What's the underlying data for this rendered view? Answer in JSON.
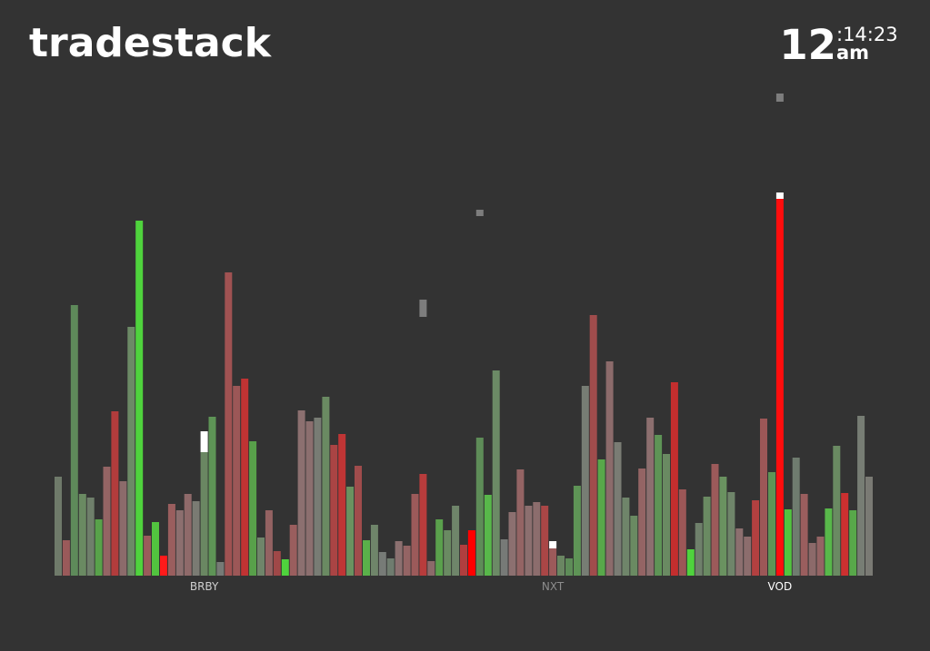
{
  "app": {
    "title": "tradestack"
  },
  "clock": {
    "hour": "12",
    "minsec": ":14:23",
    "ampm": "am"
  },
  "chart_data": {
    "type": "bar",
    "y_baseline": 0,
    "labels": [
      {
        "text": "BRBY",
        "index": 18,
        "color": "#cfcfcf"
      },
      {
        "text": "NXT",
        "index": 61,
        "color": "#8c8c8c"
      },
      {
        "text": "VOD",
        "index": 89,
        "color": "#ffffff"
      }
    ],
    "bars": [
      {
        "v": 109,
        "c": "#6f7a6a"
      },
      {
        "v": 39,
        "c": "#9a5a5a"
      },
      {
        "v": 298,
        "c": "#5e8a5a"
      },
      {
        "v": 90,
        "c": "#6a8a62"
      },
      {
        "v": 86,
        "c": "#6f7f6b"
      },
      {
        "v": 62,
        "c": "#58a24a"
      },
      {
        "v": 120,
        "c": "#946464"
      },
      {
        "v": 181,
        "c": "#b23c3c"
      },
      {
        "v": 104,
        "c": "#8c6b6b"
      },
      {
        "v": 274,
        "c": "#6c8a66"
      },
      {
        "v": 391,
        "c": "#4fd33d"
      },
      {
        "v": 44,
        "c": "#9a5b5b"
      },
      {
        "v": 59,
        "c": "#52c43f"
      },
      {
        "v": 22,
        "c": "#ff1a1a"
      },
      {
        "v": 79,
        "c": "#9a5e5e"
      },
      {
        "v": 72,
        "c": "#8c6f6f"
      },
      {
        "v": 90,
        "c": "#8f6a6a"
      },
      {
        "v": 82,
        "c": "#7a7b73"
      },
      {
        "v": 136,
        "c": "#6a8762",
        "hl": 23
      },
      {
        "v": 175,
        "c": "#5e9456"
      },
      {
        "v": 15,
        "c": "#767a76"
      },
      {
        "v": 334,
        "c": "#a05252"
      },
      {
        "v": 209,
        "c": "#9c5757"
      },
      {
        "v": 217,
        "c": "#c03333"
      },
      {
        "v": 148,
        "c": "#58a04a"
      },
      {
        "v": 42,
        "c": "#6f856a"
      },
      {
        "v": 72,
        "c": "#946262"
      },
      {
        "v": 27,
        "c": "#a04848"
      },
      {
        "v": 18,
        "c": "#4fd33d"
      },
      {
        "v": 56,
        "c": "#9a5e5e"
      },
      {
        "v": 182,
        "c": "#8c7070"
      },
      {
        "v": 170,
        "c": "#8c6f6f"
      },
      {
        "v": 174,
        "c": "#787c74"
      },
      {
        "v": 197,
        "c": "#6a8a62"
      },
      {
        "v": 144,
        "c": "#aa4444"
      },
      {
        "v": 156,
        "c": "#c03535"
      },
      {
        "v": 98,
        "c": "#6a9260"
      },
      {
        "v": 121,
        "c": "#a04c4c"
      },
      {
        "v": 39,
        "c": "#5ab04a"
      },
      {
        "v": 56,
        "c": "#6f856a"
      },
      {
        "v": 26,
        "c": "#777b77"
      },
      {
        "v": 19,
        "c": "#6f7c6f"
      },
      {
        "v": 38,
        "c": "#8c7070"
      },
      {
        "v": 33,
        "c": "#946464"
      },
      {
        "v": 90,
        "c": "#9c5a5a"
      },
      {
        "v": 112,
        "c": "#b83c3c"
      },
      {
        "v": 16,
        "c": "#8c6a6a"
      },
      {
        "v": 62,
        "c": "#5aa04c"
      },
      {
        "v": 50,
        "c": "#6a8a62"
      },
      {
        "v": 77,
        "c": "#6f856a"
      },
      {
        "v": 34,
        "c": "#b03e3e"
      },
      {
        "v": 50,
        "c": "#ff0000"
      },
      {
        "v": 152,
        "c": "#5e8c58"
      },
      {
        "v": 89,
        "c": "#58b84a"
      },
      {
        "v": 226,
        "c": "#6c8a66"
      },
      {
        "v": 40,
        "c": "#777a77"
      },
      {
        "v": 70,
        "c": "#8c7070"
      },
      {
        "v": 117,
        "c": "#946464"
      },
      {
        "v": 77,
        "c": "#8c6f6f"
      },
      {
        "v": 81,
        "c": "#8c6d6d"
      },
      {
        "v": 77,
        "c": "#aa4646"
      },
      {
        "v": 30,
        "c": "#9c5a5a",
        "hl": 8
      },
      {
        "v": 22,
        "c": "#6a8662"
      },
      {
        "v": 19,
        "c": "#5e8c58"
      },
      {
        "v": 99,
        "c": "#5e9456"
      },
      {
        "v": 209,
        "c": "#777d74"
      },
      {
        "v": 287,
        "c": "#a04c4c"
      },
      {
        "v": 128,
        "c": "#58a84a"
      },
      {
        "v": 236,
        "c": "#8c6b6b"
      },
      {
        "v": 147,
        "c": "#7a7c74"
      },
      {
        "v": 86,
        "c": "#6f856a"
      },
      {
        "v": 66,
        "c": "#6a8a62"
      },
      {
        "v": 118,
        "c": "#946464"
      },
      {
        "v": 174,
        "c": "#8c6f6f"
      },
      {
        "v": 155,
        "c": "#5e9456"
      },
      {
        "v": 134,
        "c": "#6a8a62"
      },
      {
        "v": 213,
        "c": "#c42e2e"
      },
      {
        "v": 95,
        "c": "#9c5757"
      },
      {
        "v": 29,
        "c": "#4fd33d"
      },
      {
        "v": 58,
        "c": "#6f806b"
      },
      {
        "v": 87,
        "c": "#6a8a62"
      },
      {
        "v": 123,
        "c": "#9c5a5a"
      },
      {
        "v": 109,
        "c": "#6a9260"
      },
      {
        "v": 92,
        "c": "#6f856a"
      },
      {
        "v": 52,
        "c": "#8c6f6f"
      },
      {
        "v": 43,
        "c": "#8c6d6d"
      },
      {
        "v": 83,
        "c": "#b24040"
      },
      {
        "v": 173,
        "c": "#9c5757"
      },
      {
        "v": 114,
        "c": "#5e9456"
      },
      {
        "v": 415,
        "c": "#ff0d0d",
        "hl": 7
      },
      {
        "v": 73,
        "c": "#52c43f"
      },
      {
        "v": 130,
        "c": "#6f7c6f"
      },
      {
        "v": 90,
        "c": "#9a5e5e"
      },
      {
        "v": 36,
        "c": "#8c6a6a"
      },
      {
        "v": 43,
        "c": "#946464"
      },
      {
        "v": 74,
        "c": "#58b84a"
      },
      {
        "v": 143,
        "c": "#6a8a62"
      },
      {
        "v": 91,
        "c": "#cc3030"
      },
      {
        "v": 72,
        "c": "#58a84a"
      },
      {
        "v": 176,
        "c": "#777d74"
      },
      {
        "v": 109,
        "c": "#7a7a74"
      }
    ],
    "floaters": [
      {
        "index": 52,
        "v": 403,
        "h": 7
      },
      {
        "index": 45,
        "v": 304,
        "h": 19
      },
      {
        "index": 89,
        "v": 531,
        "h": 9
      }
    ]
  }
}
